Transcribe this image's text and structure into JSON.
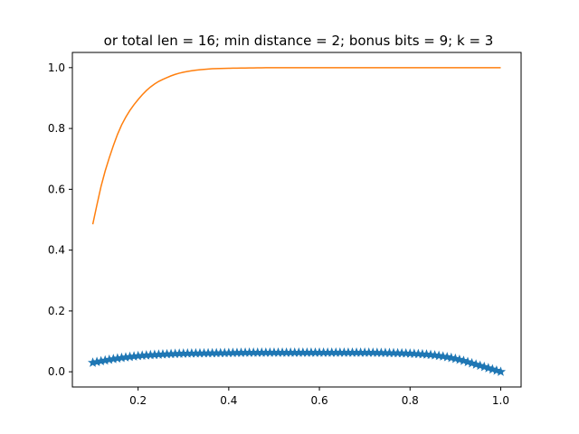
{
  "chart_data": {
    "type": "line",
    "title": "or total len = 16; min distance = 2; bonus bits = 9; k = 3",
    "xlabel": "",
    "ylabel": "",
    "xlim": [
      0.055,
      1.045
    ],
    "ylim": [
      -0.05,
      1.05
    ],
    "xticks": [
      0.2,
      0.4,
      0.6,
      0.8,
      1.0
    ],
    "xtick_labels": [
      "0.2",
      "0.4",
      "0.6",
      "0.8",
      "1.0"
    ],
    "yticks": [
      0.0,
      0.2,
      0.4,
      0.6,
      0.8,
      1.0
    ],
    "ytick_labels": [
      "0.0",
      "0.2",
      "0.4",
      "0.6",
      "0.8",
      "1.0"
    ],
    "grid": false,
    "legend": "none",
    "series": [
      {
        "color": "#1f77b4",
        "marker": "star",
        "x": [
          0.1,
          0.15,
          0.2,
          0.25,
          0.3,
          0.35,
          0.4,
          0.45,
          0.5,
          0.55,
          0.6,
          0.65,
          0.7,
          0.75,
          0.8,
          0.85,
          0.9,
          0.95,
          1.0
        ],
        "y": [
          0.03,
          0.043,
          0.052,
          0.057,
          0.06,
          0.061,
          0.062,
          0.063,
          0.063,
          0.063,
          0.063,
          0.063,
          0.063,
          0.062,
          0.06,
          0.055,
          0.043,
          0.022,
          0.0
        ]
      },
      {
        "color": "#ff7f0e",
        "marker": "none",
        "x": [
          0.1,
          0.12,
          0.14,
          0.16,
          0.18,
          0.2,
          0.22,
          0.24,
          0.26,
          0.28,
          0.3,
          0.33,
          0.36,
          0.4,
          0.45,
          0.5,
          0.6,
          0.7,
          0.8,
          0.9,
          1.0
        ],
        "y": [
          0.485,
          0.62,
          0.72,
          0.8,
          0.855,
          0.895,
          0.927,
          0.95,
          0.965,
          0.977,
          0.985,
          0.992,
          0.996,
          0.998,
          0.999,
          1.0,
          1.0,
          1.0,
          1.0,
          1.0,
          1.0
        ]
      }
    ]
  }
}
